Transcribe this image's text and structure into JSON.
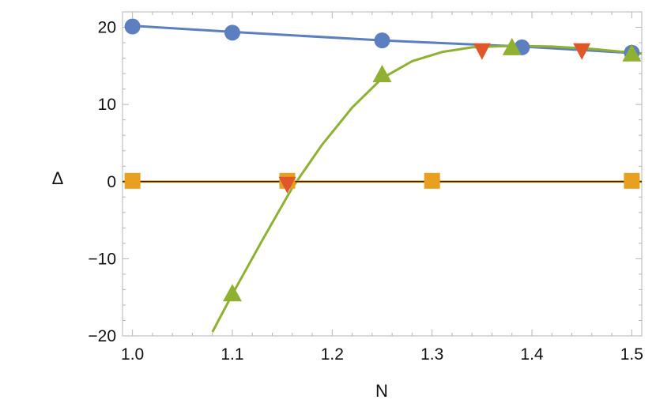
{
  "chart_data": {
    "type": "scatter",
    "xlabel": "N",
    "ylabel": "Δ",
    "xlim": [
      0.99,
      1.51
    ],
    "ylim": [
      -20,
      22
    ],
    "xticks": [
      1.0,
      1.1,
      1.2,
      1.3,
      1.4,
      1.5
    ],
    "xtick_labels": [
      "1.0",
      "1.1",
      "1.2",
      "1.3",
      "1.4",
      "1.5"
    ],
    "yticks": [
      -20,
      -10,
      0,
      10,
      20
    ],
    "ytick_labels": [
      "−20",
      "−10",
      "0",
      "10",
      "20"
    ],
    "grid": false,
    "series": [
      {
        "marker": "circle",
        "color": "#5b7fbf",
        "points": [
          {
            "x": 1.0,
            "y": 20.1
          },
          {
            "x": 1.1,
            "y": 19.3
          },
          {
            "x": 1.25,
            "y": 18.3
          },
          {
            "x": 1.39,
            "y": 17.4
          },
          {
            "x": 1.5,
            "y": 16.7
          }
        ],
        "curve": [
          {
            "x": 1.0,
            "y": 20.2
          },
          {
            "x": 1.1,
            "y": 19.4
          },
          {
            "x": 1.25,
            "y": 18.3
          },
          {
            "x": 1.39,
            "y": 17.5
          },
          {
            "x": 1.51,
            "y": 16.6
          }
        ]
      },
      {
        "marker": "triangle-down",
        "color": "#e0572a",
        "points": [
          {
            "x": 1.155,
            "y": -0.3
          },
          {
            "x": 1.35,
            "y": 17.0
          },
          {
            "x": 1.45,
            "y": 17.0
          }
        ]
      },
      {
        "marker": "triangle-up",
        "color": "#8fb032",
        "points": [
          {
            "x": 1.1,
            "y": -14.6
          },
          {
            "x": 1.25,
            "y": 13.8
          },
          {
            "x": 1.38,
            "y": 17.3
          },
          {
            "x": 1.5,
            "y": 16.5
          }
        ],
        "curve": [
          {
            "x": 1.08,
            "y": -19.5
          },
          {
            "x": 1.1,
            "y": -14.6
          },
          {
            "x": 1.13,
            "y": -7.6
          },
          {
            "x": 1.16,
            "y": -0.8
          },
          {
            "x": 1.19,
            "y": 4.8
          },
          {
            "x": 1.22,
            "y": 9.6
          },
          {
            "x": 1.25,
            "y": 13.4
          },
          {
            "x": 1.28,
            "y": 15.6
          },
          {
            "x": 1.31,
            "y": 16.8
          },
          {
            "x": 1.34,
            "y": 17.4
          },
          {
            "x": 1.38,
            "y": 17.6
          },
          {
            "x": 1.42,
            "y": 17.5
          },
          {
            "x": 1.46,
            "y": 17.2
          },
          {
            "x": 1.51,
            "y": 16.6
          }
        ]
      },
      {
        "marker": "square",
        "color": "#e8a020",
        "points": [
          {
            "x": 1.0,
            "y": 0.1
          },
          {
            "x": 1.155,
            "y": 0.1
          },
          {
            "x": 1.3,
            "y": 0.1
          },
          {
            "x": 1.5,
            "y": 0.1
          }
        ],
        "curve": [
          {
            "x": 0.99,
            "y": 0.0
          },
          {
            "x": 1.51,
            "y": 0.0
          }
        ]
      }
    ],
    "reference_line_color": "#111111"
  }
}
